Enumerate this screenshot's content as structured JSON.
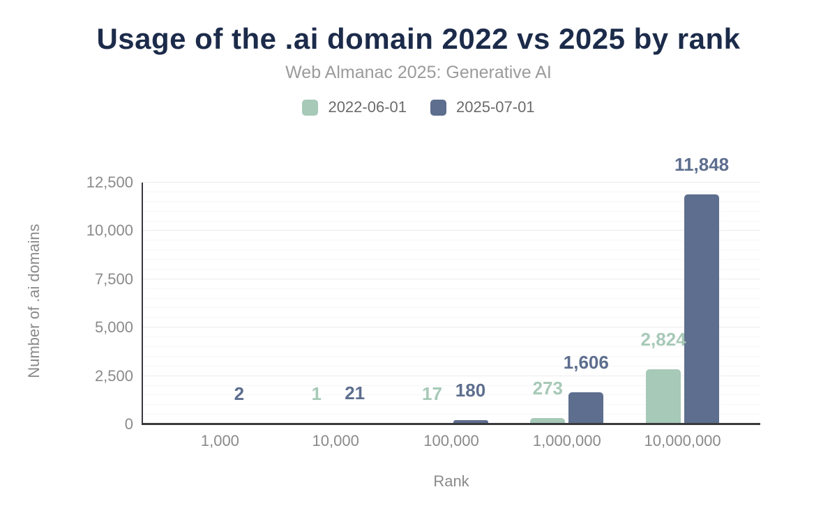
{
  "chart_data": {
    "type": "bar",
    "title": "Usage of the .ai domain 2022 vs 2025 by rank",
    "subtitle": "Web Almanac 2025: Generative AI",
    "categories": [
      "1,000",
      "10,000",
      "100,000",
      "1,000,000",
      "10,000,000"
    ],
    "series": [
      {
        "name": "2022-06-01",
        "color": "#a7c9b7",
        "values": [
          0,
          1,
          17,
          273,
          2824
        ],
        "labels": [
          "",
          "1",
          "17",
          "273",
          "2,824"
        ]
      },
      {
        "name": "2025-07-01",
        "color": "#5d6e8e",
        "values": [
          2,
          21,
          180,
          1606,
          11848
        ],
        "labels": [
          "2",
          "21",
          "180",
          "1,606",
          "11,848"
        ]
      }
    ],
    "xlabel": "Rank",
    "ylabel": "Number of .ai domains",
    "ylim": [
      0,
      12500
    ],
    "yticks": [
      0,
      2500,
      5000,
      7500,
      10000,
      12500
    ],
    "ytick_labels": [
      "0",
      "2,500",
      "5,000",
      "7,500",
      "10,000",
      "12,500"
    ],
    "grid": {
      "minor_step": 500,
      "major_step": 2500,
      "vertical": false
    },
    "legend_position": "top"
  },
  "colors": {
    "title": "#1c2b4a",
    "subtitle": "#9b9b9b",
    "axis_text": "#8a8a8a",
    "legend_text": "#6b6b6b",
    "axis_line": "#38393d",
    "grid_minor": "#f6f6f6",
    "grid_major": "#ececec",
    "background": "#ffffff"
  }
}
